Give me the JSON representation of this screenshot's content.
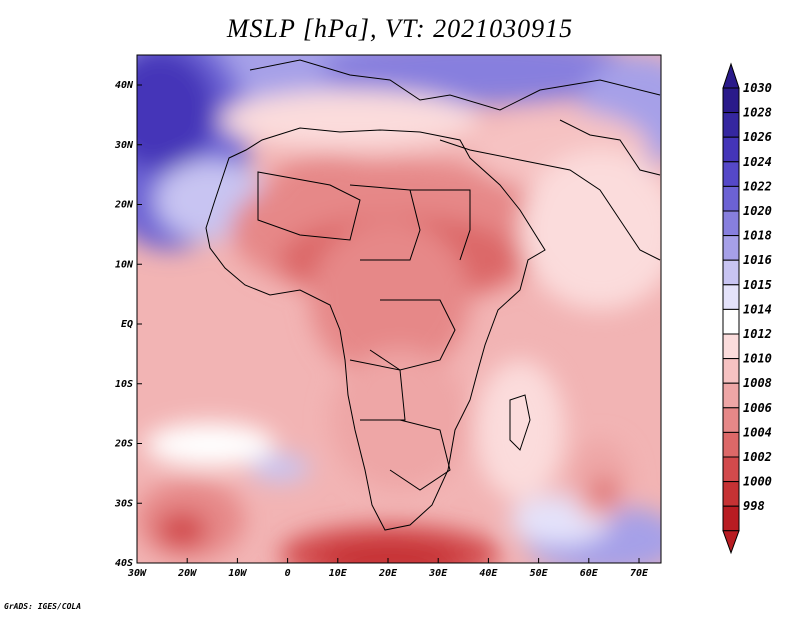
{
  "title": "MSLP [hPa], VT: 2021030915",
  "credit": "GrADS: IGES/COLA",
  "lat_labels": [
    "40N",
    "30N",
    "20N",
    "10N",
    "EQ",
    "10S",
    "20S",
    "30S",
    "40S"
  ],
  "lon_labels": [
    "30W",
    "20W",
    "10W",
    "0",
    "10E",
    "20E",
    "30E",
    "40E",
    "50E",
    "60E",
    "70E"
  ],
  "colorbar": {
    "arrow_top_color": "#2a1a8a",
    "arrow_bottom_color": "#b81c22",
    "levels": [
      {
        "label": "1030",
        "color": "#2a1a8a"
      },
      {
        "label": "1028",
        "color": "#3527a0"
      },
      {
        "label": "1026",
        "color": "#4435b8"
      },
      {
        "label": "1024",
        "color": "#5548c8"
      },
      {
        "label": "1022",
        "color": "#6c62d4"
      },
      {
        "label": "1020",
        "color": "#877fde"
      },
      {
        "label": "1018",
        "color": "#a6a0e8"
      },
      {
        "label": "1016",
        "color": "#c8c4f2"
      },
      {
        "label": "1015",
        "color": "#e4e2fa"
      },
      {
        "label": "1014",
        "color": "#ffffff"
      },
      {
        "label": "1012",
        "color": "#fbdcdc"
      },
      {
        "label": "1010",
        "color": "#f6c2c2"
      },
      {
        "label": "1008",
        "color": "#eea6a6"
      },
      {
        "label": "1006",
        "color": "#e68888"
      },
      {
        "label": "1004",
        "color": "#dc6868"
      },
      {
        "label": "1002",
        "color": "#d24a4c"
      },
      {
        "label": "1000",
        "color": "#c63234"
      },
      {
        "label": "998",
        "color": "#b81c22"
      }
    ]
  },
  "pressure_features": [
    {
      "name": "high-north-atlantic",
      "value": "1028"
    },
    {
      "name": "low-south-atlantic",
      "value": "1002"
    },
    {
      "name": "low-indian-ocean",
      "value": "1004"
    },
    {
      "name": "low-southern-africa",
      "value": "1000"
    },
    {
      "name": "high-south-atlantic-white",
      "value": "1014"
    },
    {
      "name": "high-south-indian",
      "value": "1022"
    }
  ]
}
